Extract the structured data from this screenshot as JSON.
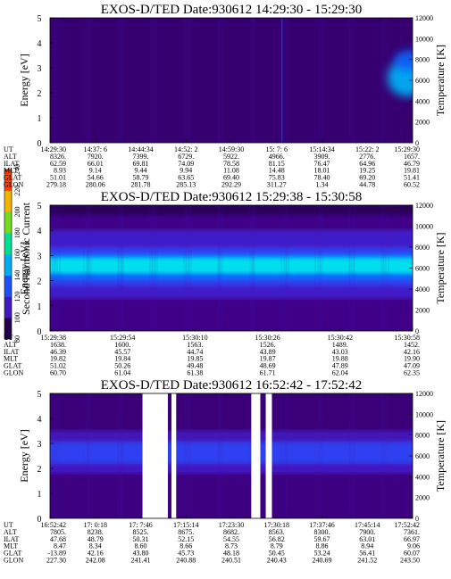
{
  "chart_data": [
    {
      "type": "heatmap",
      "title": "EXOS-D/TED   Date:930612   14:29:30 - 15:29:30",
      "ylabel": "Energy [eV]",
      "y2label": "Temperature [K]",
      "ylim": [
        0,
        5
      ],
      "y2lim": [
        0,
        12000
      ],
      "y_ticks": [
        "0",
        "1",
        "2",
        "3",
        "4",
        "5"
      ],
      "y2_ticks": [
        "0",
        "2000",
        "4000",
        "6000",
        "8000",
        "10000",
        "12000"
      ],
      "background_level": 95,
      "features": [
        {
          "kind": "blob",
          "x_frac": 0.985,
          "y": 2.6,
          "w_frac": 0.06,
          "h": 1.5,
          "level": 150
        },
        {
          "kind": "blob",
          "x_frac": 0.99,
          "y": 3.3,
          "w_frac": 0.03,
          "h": 0.8,
          "level": 135
        },
        {
          "kind": "streak",
          "x_frac": 0.64,
          "level": 130
        }
      ],
      "table": {
        "labels": [
          "UT",
          "ALT",
          "ILAT",
          "MLT",
          "GLAT",
          "GLON"
        ],
        "columns": [
          [
            "14:29:30",
            "8326.",
            "62.59",
            "8.93",
            "51.01",
            "279.18"
          ],
          [
            "14:37: 6",
            "7920.",
            "66.01",
            "9.14",
            "54.66",
            "280.06"
          ],
          [
            "14:44:34",
            "7399.",
            "69.81",
            "9.44",
            "58.79",
            "281.78"
          ],
          [
            "14:52: 2",
            "6729.",
            "74.09",
            "9.94",
            "63.65",
            "285.13"
          ],
          [
            "14:59:30",
            "5922.",
            "78.58",
            "11.08",
            "69.40",
            "292.29"
          ],
          [
            "15: 7: 6",
            "4966.",
            "81.15",
            "14.48",
            "75.83",
            "311.27"
          ],
          [
            "15:14:34",
            "3909.",
            "76.47",
            "18.01",
            "78.40",
            "1.34"
          ],
          [
            "15:22: 2",
            "2776.",
            "64.96",
            "19.25",
            "69.20",
            "44.78"
          ],
          [
            "15:29:30",
            "1657.",
            "46.79",
            "19.81",
            "51.41",
            "60.52"
          ]
        ]
      }
    },
    {
      "type": "heatmap",
      "title": "EXOS-D/TED   Date:930612   15:29:38 - 15:30:58",
      "ylabel": "Energy [eV]",
      "y2label": "Temperature [K]",
      "ylim": [
        0,
        5
      ],
      "y2lim": [
        0,
        12000
      ],
      "y_ticks": [
        "0",
        "1",
        "2",
        "3",
        "4",
        "5"
      ],
      "y2_ticks": [
        "0",
        "2000",
        "4000",
        "6000",
        "8000",
        "10000",
        "12000"
      ],
      "bands": [
        {
          "y0": 4.6,
          "y1": 5.0,
          "level": 92
        },
        {
          "y0": 4.0,
          "y1": 4.6,
          "level": 98
        },
        {
          "y0": 3.3,
          "y1": 4.0,
          "level": 112
        },
        {
          "y0": 3.05,
          "y1": 3.3,
          "level": 125
        },
        {
          "y0": 2.9,
          "y1": 3.05,
          "level": 140
        },
        {
          "y0": 2.3,
          "y1": 2.9,
          "level": 158
        },
        {
          "y0": 2.05,
          "y1": 2.3,
          "level": 140
        },
        {
          "y0": 1.8,
          "y1": 2.05,
          "level": 125
        },
        {
          "y0": 1.3,
          "y1": 1.8,
          "level": 112
        },
        {
          "y0": 0.0,
          "y1": 1.3,
          "level": 98
        }
      ],
      "table": {
        "labels": [
          "UT",
          "ALT",
          "ILAT",
          "MLT",
          "GLAT",
          "GLON"
        ],
        "columns": [
          [
            "15:29:38",
            "1638.",
            "46.39",
            "19.82",
            "51.02",
            "60.70"
          ],
          [
            "15:29:54",
            "1600.",
            "45.57",
            "19.84",
            "50.26",
            "61.04"
          ],
          [
            "15:30:10",
            "1563.",
            "44.74",
            "19.85",
            "49.48",
            "61.38"
          ],
          [
            "15:30:26",
            "1526.",
            "43.89",
            "19.87",
            "48.69",
            "61.71"
          ],
          [
            "15:30:42",
            "1489.",
            "43.03",
            "19.88",
            "47.89",
            "62.04"
          ],
          [
            "15:30:58",
            "1452.",
            "42.16",
            "19.90",
            "47.09",
            "62.35"
          ]
        ]
      }
    },
    {
      "type": "heatmap",
      "title": "EXOS-D/TED   Date:930612   16:52:42 - 17:52:42",
      "ylabel": "Energy [eV]",
      "y2label": "Temperature [K]",
      "ylim": [
        0,
        5
      ],
      "y2lim": [
        0,
        12000
      ],
      "y_ticks": [
        "0",
        "1",
        "2",
        "3",
        "4",
        "5"
      ],
      "y2_ticks": [
        "0",
        "2000",
        "4000",
        "6000",
        "8000",
        "10000",
        "12000"
      ],
      "bands": [
        {
          "y0": 3.5,
          "y1": 5.0,
          "level": 96
        },
        {
          "y0": 3.05,
          "y1": 3.5,
          "level": 108
        },
        {
          "y0": 2.2,
          "y1": 3.05,
          "level": 125
        },
        {
          "y0": 1.8,
          "y1": 2.2,
          "level": 110
        },
        {
          "y0": 0.0,
          "y1": 1.8,
          "level": 97
        }
      ],
      "gaps_frac": [
        [
          0.255,
          0.325
        ],
        [
          0.335,
          0.348
        ],
        [
          0.555,
          0.58
        ],
        [
          0.595,
          0.612
        ]
      ],
      "table": {
        "labels": [
          "UT",
          "ALT",
          "ILAT",
          "MLT",
          "GLAT",
          "GLON"
        ],
        "columns": [
          [
            "16:52:42",
            "7805.",
            "47.68",
            "8.47",
            "-13.89",
            "227.30"
          ],
          [
            "17: 0:18",
            "8238.",
            "48.79",
            "8.34",
            "42.16",
            "242.08"
          ],
          [
            "17: 7:46",
            "8525.",
            "50.31",
            "8.60",
            "43.80",
            "241.41"
          ],
          [
            "17:15:14",
            "8675.",
            "52.15",
            "8.66",
            "45.73",
            "240.88"
          ],
          [
            "17:23:30",
            "8682.",
            "54.55",
            "8.73",
            "48.18",
            "240.51"
          ],
          [
            "17:30:18",
            "8563.",
            "56.82",
            "8.79",
            "50.45",
            "240.43"
          ],
          [
            "17:37:46",
            "8300.",
            "59.67",
            "8.86",
            "53.24",
            "240.69"
          ],
          [
            "17:45:14",
            "7900.",
            "63.01",
            "8.94",
            "56.41",
            "241.52"
          ],
          [
            "17:52:42",
            "7361.",
            "66.97",
            "9.06",
            "60.07",
            "243.50"
          ]
        ]
      }
    }
  ],
  "colorbar": {
    "label": "Second Harmonic Current",
    "ticks": [
      "80",
      "100",
      "120",
      "140",
      "160",
      "180",
      "200",
      "220",
      "240"
    ],
    "range": [
      80,
      240
    ]
  }
}
